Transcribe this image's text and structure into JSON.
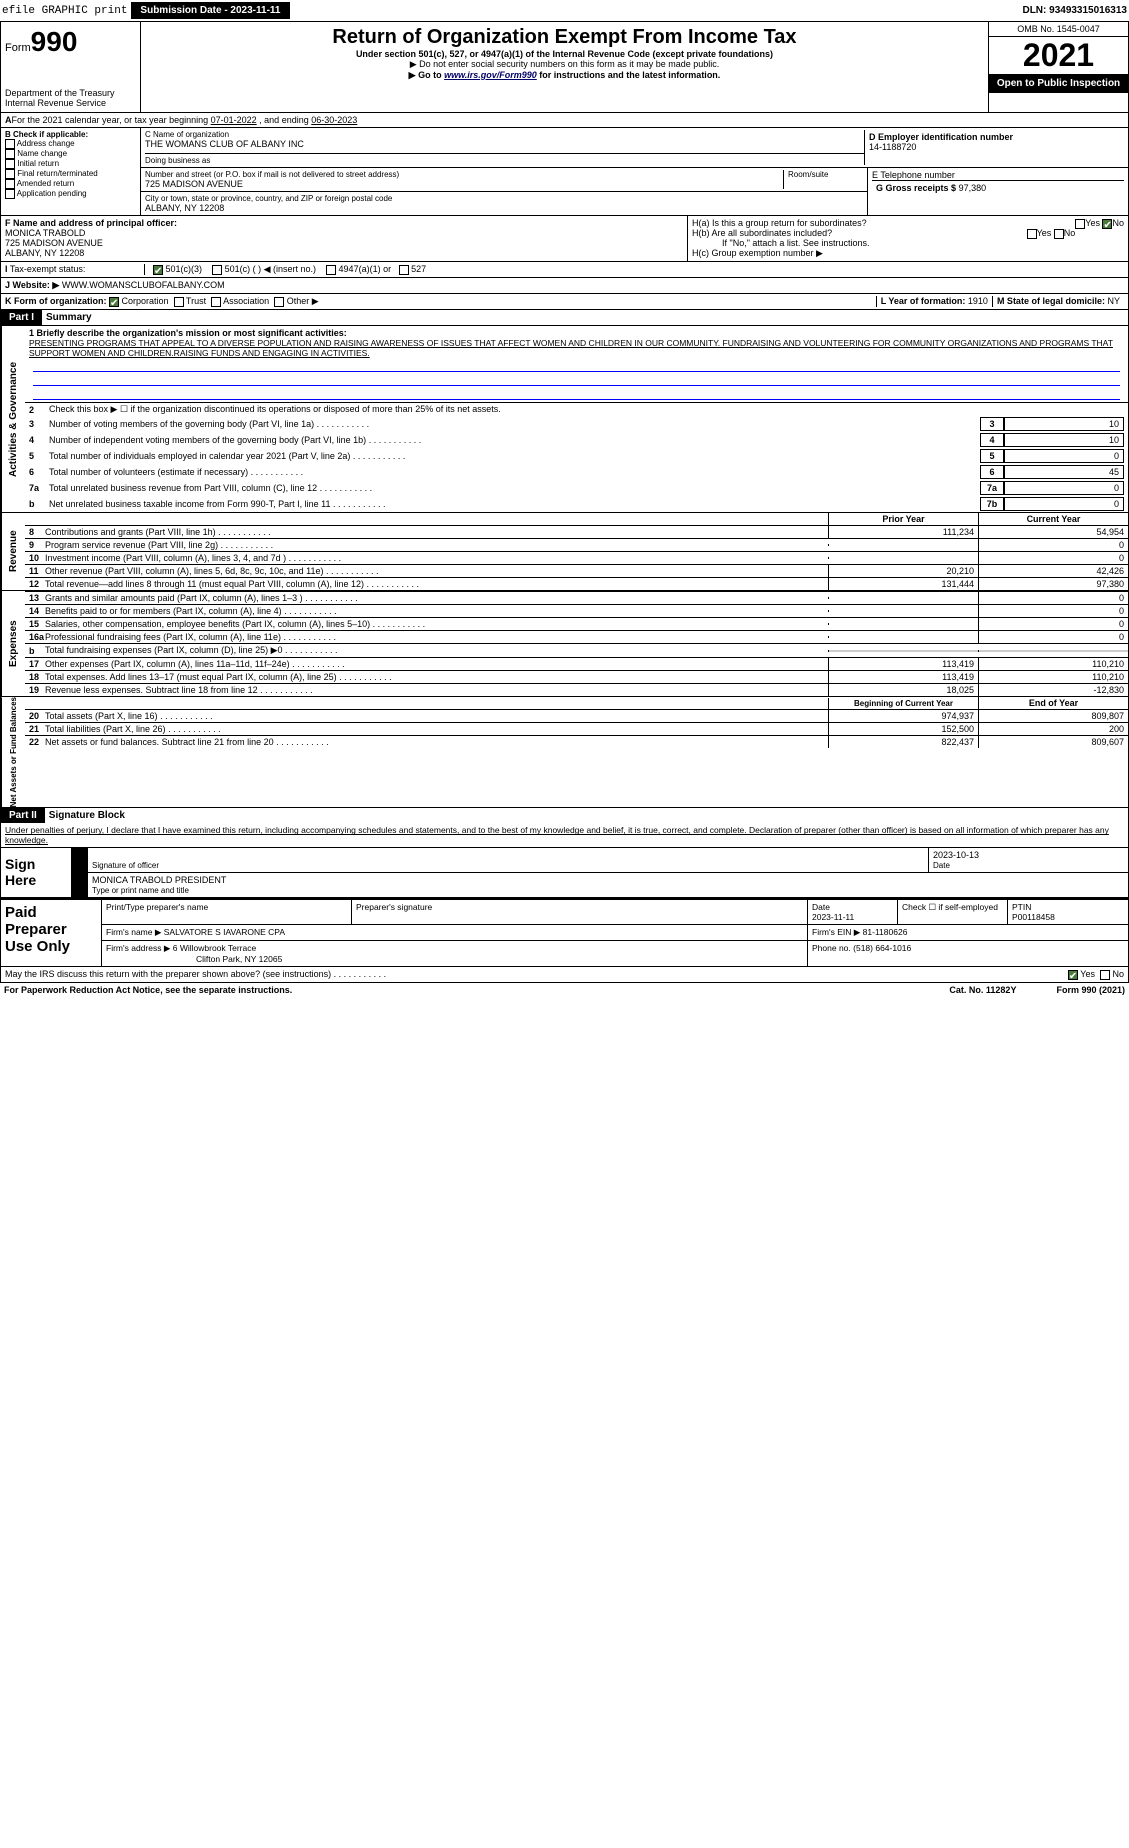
{
  "topbar": {
    "efile": "efile GRAPHIC print",
    "submission": "Submission Date - 2023-11-11",
    "dln": "DLN: 93493315016313"
  },
  "header": {
    "form_label": "Form",
    "form_num": "990",
    "dept": "Department of the Treasury",
    "irs": "Internal Revenue Service",
    "title": "Return of Organization Exempt From Income Tax",
    "subtitle": "Under section 501(c), 527, or 4947(a)(1) of the Internal Revenue Code (except private foundations)",
    "note1": "▶ Do not enter social security numbers on this form as it may be made public.",
    "note2_pre": "▶ Go to ",
    "note2_link": "www.irs.gov/Form990",
    "note2_post": " for instructions and the latest information.",
    "omb": "OMB No. 1545-0047",
    "year": "2021",
    "open": "Open to Public Inspection"
  },
  "row_a": {
    "text_pre": "For the 2021 calendar year, or tax year beginning ",
    "begin": "07-01-2022",
    "text_mid": " , and ending ",
    "end": "06-30-2023"
  },
  "col_b": {
    "label": "B Check if applicable:",
    "opts": [
      "Address change",
      "Name change",
      "Initial return",
      "Final return/terminated",
      "Amended return",
      "Application pending"
    ]
  },
  "col_c": {
    "name_label": "C Name of organization",
    "name": "THE WOMANS CLUB OF ALBANY INC",
    "dba_label": "Doing business as",
    "addr_label": "Number and street (or P.O. box if mail is not delivered to street address)",
    "addr": "725 MADISON AVENUE",
    "room_label": "Room/suite",
    "city_label": "City or town, state or province, country, and ZIP or foreign postal code",
    "city": "ALBANY, NY  12208"
  },
  "col_d": {
    "label": "D Employer identification number",
    "val": "14-1188720"
  },
  "col_e": {
    "label": "E Telephone number"
  },
  "col_g": {
    "label": "G Gross receipts $",
    "val": "97,380"
  },
  "col_f": {
    "label": "F Name and address of principal officer:",
    "name": "MONICA TRABOLD",
    "addr1": "725 MADISON AVENUE",
    "addr2": "ALBANY, NY  12208"
  },
  "col_h": {
    "a_label": "H(a)  Is this a group return for subordinates?",
    "b_label": "H(b)  Are all subordinates included?",
    "b_note": "If \"No,\" attach a list. See instructions.",
    "c_label": "H(c)  Group exemption number ▶",
    "yes": "Yes",
    "no": "No"
  },
  "row_i": {
    "label": "Tax-exempt status:",
    "opts": [
      "501(c)(3)",
      "501(c) (  ) ◀ (insert no.)",
      "4947(a)(1) or",
      "527"
    ]
  },
  "row_j": {
    "label": "Website: ▶",
    "val": "WWW.WOMANSCLUBOFALBANY.COM"
  },
  "row_k": {
    "label": "K Form of organization:",
    "opts": [
      "Corporation",
      "Trust",
      "Association",
      "Other ▶"
    ],
    "l_label": "L Year of formation:",
    "l_val": "1910",
    "m_label": "M State of legal domicile:",
    "m_val": "NY"
  },
  "part1": {
    "header": "Part I",
    "title": "Summary",
    "line1_label": "1  Briefly describe the organization's mission or most significant activities:",
    "mission": "PRESENTING PROGRAMS THAT APPEAL TO A DIVERSE POPULATION AND RAISING AWARENESS OF ISSUES THAT AFFECT WOMEN AND CHILDREN IN OUR COMMUNITY. FUNDRAISING AND VOLUNTEERING FOR COMMUNITY ORGANIZATIONS AND PROGRAMS THAT SUPPORT WOMEN AND CHILDREN.RAISING FUNDS AND ENGAGING IN ACTIVITIES.",
    "line2": "Check this box ▶ ☐ if the organization discontinued its operations or disposed of more than 25% of its net assets.",
    "sidebar_gov": "Activities & Governance",
    "sidebar_rev": "Revenue",
    "sidebar_exp": "Expenses",
    "sidebar_net": "Net Assets or Fund Balances",
    "gov_lines": [
      {
        "n": "3",
        "d": "Number of voting members of the governing body (Part VI, line 1a)",
        "b": "3",
        "v": "10"
      },
      {
        "n": "4",
        "d": "Number of independent voting members of the governing body (Part VI, line 1b)",
        "b": "4",
        "v": "10"
      },
      {
        "n": "5",
        "d": "Total number of individuals employed in calendar year 2021 (Part V, line 2a)",
        "b": "5",
        "v": "0"
      },
      {
        "n": "6",
        "d": "Total number of volunteers (estimate if necessary)",
        "b": "6",
        "v": "45"
      },
      {
        "n": "7a",
        "d": "Total unrelated business revenue from Part VIII, column (C), line 12",
        "b": "7a",
        "v": "0"
      },
      {
        "n": "b",
        "d": "Net unrelated business taxable income from Form 990-T, Part I, line 11",
        "b": "7b",
        "v": "0"
      }
    ],
    "prior_year": "Prior Year",
    "current_year": "Current Year",
    "rev_lines": [
      {
        "n": "8",
        "d": "Contributions and grants (Part VIII, line 1h)",
        "c1": "111,234",
        "c2": "54,954"
      },
      {
        "n": "9",
        "d": "Program service revenue (Part VIII, line 2g)",
        "c1": "",
        "c2": "0"
      },
      {
        "n": "10",
        "d": "Investment income (Part VIII, column (A), lines 3, 4, and 7d )",
        "c1": "",
        "c2": "0"
      },
      {
        "n": "11",
        "d": "Other revenue (Part VIII, column (A), lines 5, 6d, 8c, 9c, 10c, and 11e)",
        "c1": "20,210",
        "c2": "42,426"
      },
      {
        "n": "12",
        "d": "Total revenue—add lines 8 through 11 (must equal Part VIII, column (A), line 12)",
        "c1": "131,444",
        "c2": "97,380"
      }
    ],
    "exp_lines": [
      {
        "n": "13",
        "d": "Grants and similar amounts paid (Part IX, column (A), lines 1–3 )",
        "c1": "",
        "c2": "0"
      },
      {
        "n": "14",
        "d": "Benefits paid to or for members (Part IX, column (A), line 4)",
        "c1": "",
        "c2": "0"
      },
      {
        "n": "15",
        "d": "Salaries, other compensation, employee benefits (Part IX, column (A), lines 5–10)",
        "c1": "",
        "c2": "0"
      },
      {
        "n": "16a",
        "d": "Professional fundraising fees (Part IX, column (A), line 11e)",
        "c1": "",
        "c2": "0"
      },
      {
        "n": "b",
        "d": "Total fundraising expenses (Part IX, column (D), line 25) ▶0",
        "c1": "shaded",
        "c2": "shaded"
      },
      {
        "n": "17",
        "d": "Other expenses (Part IX, column (A), lines 11a–11d, 11f–24e)",
        "c1": "113,419",
        "c2": "110,210"
      },
      {
        "n": "18",
        "d": "Total expenses. Add lines 13–17 (must equal Part IX, column (A), line 25)",
        "c1": "113,419",
        "c2": "110,210"
      },
      {
        "n": "19",
        "d": "Revenue less expenses. Subtract line 18 from line 12",
        "c1": "18,025",
        "c2": "-12,830"
      }
    ],
    "beg_year": "Beginning of Current Year",
    "end_year": "End of Year",
    "net_lines": [
      {
        "n": "20",
        "d": "Total assets (Part X, line 16)",
        "c1": "974,937",
        "c2": "809,807"
      },
      {
        "n": "21",
        "d": "Total liabilities (Part X, line 26)",
        "c1": "152,500",
        "c2": "200"
      },
      {
        "n": "22",
        "d": "Net assets or fund balances. Subtract line 21 from line 20",
        "c1": "822,437",
        "c2": "809,607"
      }
    ]
  },
  "part2": {
    "header": "Part II",
    "title": "Signature Block",
    "decl": "Under penalties of perjury, I declare that I have examined this return, including accompanying schedules and statements, and to the best of my knowledge and belief, it is true, correct, and complete. Declaration of preparer (other than officer) is based on all information of which preparer has any knowledge.",
    "sign_here": "Sign Here",
    "sig_officer": "Signature of officer",
    "date": "Date",
    "sig_date": "2023-10-13",
    "officer_name": "MONICA TRABOLD  PRESIDENT",
    "type_name": "Type or print name and title"
  },
  "paid": {
    "label": "Paid Preparer Use Only",
    "prep_name_label": "Print/Type preparer's name",
    "prep_sig_label": "Preparer's signature",
    "date_label": "Date",
    "date_val": "2023-11-11",
    "check_label": "Check ☐ if self-employed",
    "ptin_label": "PTIN",
    "ptin_val": "P00118458",
    "firm_name_label": "Firm's name    ▶",
    "firm_name": "SALVATORE S IAVARONE CPA",
    "firm_ein_label": "Firm's EIN ▶",
    "firm_ein": "81-1180626",
    "firm_addr_label": "Firm's address ▶",
    "firm_addr1": "6 Willowbrook Terrace",
    "firm_addr2": "Clifton Park, NY  12065",
    "phone_label": "Phone no.",
    "phone": "(518) 664-1016"
  },
  "footer": {
    "discuss": "May the IRS discuss this return with the preparer shown above? (see instructions)",
    "yes": "Yes",
    "no": "No",
    "paperwork": "For Paperwork Reduction Act Notice, see the separate instructions.",
    "cat": "Cat. No. 11282Y",
    "form": "Form 990 (2021)"
  }
}
